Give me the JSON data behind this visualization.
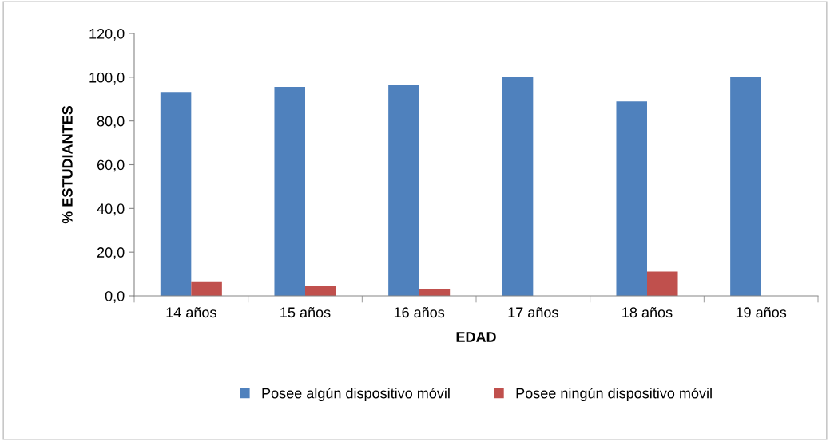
{
  "chart_data": {
    "type": "bar",
    "xlabel": "EDAD",
    "ylabel": "% ESTUDIANTES",
    "categories": [
      "14 años",
      "15 años",
      "16 años",
      "17 años",
      "18 años",
      "19 años"
    ],
    "series": [
      {
        "name": "Posee algún dispositivo móvil",
        "color": "#4f81bd",
        "values": [
          93.3,
          95.6,
          96.7,
          100.0,
          88.9,
          100.0
        ]
      },
      {
        "name": "Posee ningún dispositivo móvil",
        "color": "#c0504d",
        "values": [
          6.7,
          4.4,
          3.3,
          0.0,
          11.1,
          0.0
        ]
      }
    ],
    "ylim": [
      0,
      120
    ],
    "yticks": [
      {
        "value": 0,
        "label": "0,0"
      },
      {
        "value": 20,
        "label": "20,0"
      },
      {
        "value": 40,
        "label": "40,0"
      },
      {
        "value": 60,
        "label": "60,0"
      },
      {
        "value": 80,
        "label": "80,0"
      },
      {
        "value": 100,
        "label": "100,0"
      },
      {
        "value": 120,
        "label": "120,0"
      }
    ],
    "grid": false,
    "legend": "bottom"
  }
}
